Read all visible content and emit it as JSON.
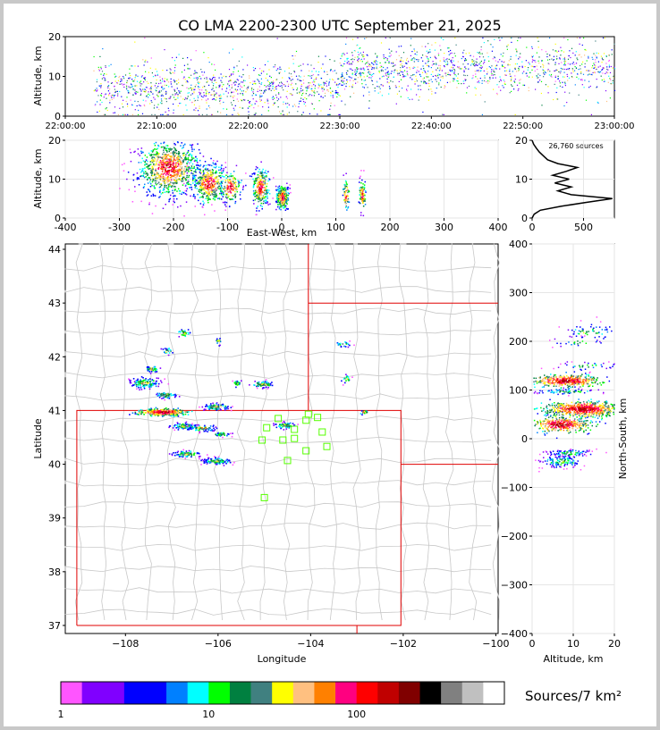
{
  "chart_data": {
    "type": "scatter",
    "title": "CO LMA 2200-2300 UTC September 21, 2025",
    "panels": {
      "time_height": {
        "ylabel": "Altitude, km",
        "ylim": [
          0,
          20
        ],
        "yticks": [
          "0",
          "10",
          "20"
        ],
        "xticks": [
          "22:00:00",
          "22:10:00",
          "22:20:00",
          "22:30:00",
          "22:40:00",
          "22:50:00",
          "23:00:00"
        ],
        "xlim_minutes": [
          0,
          60
        ]
      },
      "ew_height": {
        "ylabel": "Altitude, km",
        "xlabel": "East-West, km",
        "xlim": [
          -400,
          400
        ],
        "ylim": [
          0,
          20
        ],
        "xticks": [
          "-400",
          "-300",
          "-200",
          "-100",
          "0",
          "100",
          "200",
          "300",
          "400"
        ],
        "yticks": [
          "0",
          "10",
          "20"
        ],
        "clusters": [
          {
            "x": -210,
            "alt": 13,
            "sx": 28,
            "sz": 3.5,
            "n": 900
          },
          {
            "x": -135,
            "alt": 9,
            "sx": 15,
            "sz": 2.5,
            "n": 420
          },
          {
            "x": -95,
            "alt": 8,
            "sx": 10,
            "sz": 2,
            "n": 160
          },
          {
            "x": -40,
            "alt": 8,
            "sx": 8,
            "sz": 2.5,
            "n": 260
          },
          {
            "x": 0,
            "alt": 5.5,
            "sx": 6,
            "sz": 1.5,
            "n": 260
          },
          {
            "x": 118,
            "alt": 6,
            "sx": 3,
            "sz": 2,
            "n": 70
          },
          {
            "x": 148,
            "alt": 6,
            "sx": 3,
            "sz": 2,
            "n": 90
          }
        ]
      },
      "histogram": {
        "annotation": "26,760 sources",
        "xlim": [
          0,
          800
        ],
        "ylim": [
          0,
          20
        ],
        "xticks": [
          "0",
          "500"
        ],
        "yticks": [
          "0",
          "10",
          "20"
        ],
        "profile_alt_km": [
          0,
          1,
          2,
          3,
          4,
          5,
          6,
          7,
          8,
          9,
          10,
          11,
          12,
          13,
          14,
          15,
          16,
          17,
          18,
          19,
          20
        ],
        "profile_counts": [
          0,
          20,
          80,
          280,
          520,
          780,
          380,
          250,
          380,
          220,
          360,
          200,
          330,
          440,
          250,
          150,
          110,
          70,
          40,
          15,
          0
        ]
      },
      "plan_view": {
        "xlabel": "Longitude",
        "ylabel": "Latitude",
        "xlim": [
          -109.3,
          -99.95
        ],
        "ylim": [
          36.85,
          44.1
        ],
        "xticks": [
          "−108",
          "−106",
          "−104",
          "−102",
          "−100"
        ],
        "yticks": [
          "37",
          "38",
          "39",
          "40",
          "41",
          "42",
          "43",
          "44"
        ],
        "stations": [
          {
            "lon": -104.7,
            "lat": 40.85
          },
          {
            "lon": -104.05,
            "lat": 40.93
          },
          {
            "lon": -103.85,
            "lat": 40.87
          },
          {
            "lon": -104.1,
            "lat": 40.82
          },
          {
            "lon": -104.95,
            "lat": 40.68
          },
          {
            "lon": -104.35,
            "lat": 40.65
          },
          {
            "lon": -103.75,
            "lat": 40.6
          },
          {
            "lon": -104.6,
            "lat": 40.45
          },
          {
            "lon": -104.35,
            "lat": 40.48
          },
          {
            "lon": -105.05,
            "lat": 40.45
          },
          {
            "lon": -103.65,
            "lat": 40.33
          },
          {
            "lon": -104.1,
            "lat": 40.25
          },
          {
            "lon": -104.5,
            "lat": 40.07
          },
          {
            "lon": -105.0,
            "lat": 39.38
          }
        ],
        "clusters": [
          {
            "lon": -107.2,
            "lat": 40.98,
            "sl": 0.25,
            "sb": 0.03,
            "n": 360
          },
          {
            "lon": -106.05,
            "lat": 41.08,
            "sl": 0.15,
            "sb": 0.03,
            "n": 90
          },
          {
            "lon": -107.6,
            "lat": 41.52,
            "sl": 0.15,
            "sb": 0.05,
            "n": 130
          },
          {
            "lon": -107.45,
            "lat": 41.78,
            "sl": 0.08,
            "sb": 0.03,
            "n": 40
          },
          {
            "lon": -107.15,
            "lat": 41.3,
            "sl": 0.12,
            "sb": 0.03,
            "n": 60
          },
          {
            "lon": -106.75,
            "lat": 40.72,
            "sl": 0.15,
            "sb": 0.03,
            "n": 80
          },
          {
            "lon": -106.35,
            "lat": 40.68,
            "sl": 0.15,
            "sb": 0.03,
            "n": 70
          },
          {
            "lon": -106.7,
            "lat": 40.2,
            "sl": 0.15,
            "sb": 0.03,
            "n": 80
          },
          {
            "lon": -106.05,
            "lat": 40.07,
            "sl": 0.15,
            "sb": 0.03,
            "n": 110
          },
          {
            "lon": -105.95,
            "lat": 40.57,
            "sl": 0.1,
            "sb": 0.02,
            "n": 35
          },
          {
            "lon": -104.55,
            "lat": 40.73,
            "sl": 0.12,
            "sb": 0.03,
            "n": 70
          },
          {
            "lon": -105.05,
            "lat": 41.5,
            "sl": 0.12,
            "sb": 0.03,
            "n": 70
          },
          {
            "lon": -105.6,
            "lat": 41.52,
            "sl": 0.04,
            "sb": 0.03,
            "n": 25
          },
          {
            "lon": -106.75,
            "lat": 42.45,
            "sl": 0.08,
            "sb": 0.04,
            "n": 30
          },
          {
            "lon": -107.1,
            "lat": 42.12,
            "sl": 0.08,
            "sb": 0.03,
            "n": 20
          },
          {
            "lon": -106.0,
            "lat": 42.3,
            "sl": 0.03,
            "sb": 0.04,
            "n": 15
          },
          {
            "lon": -103.3,
            "lat": 42.25,
            "sl": 0.08,
            "sb": 0.03,
            "n": 20
          },
          {
            "lon": -103.25,
            "lat": 41.6,
            "sl": 0.05,
            "sb": 0.04,
            "n": 20
          },
          {
            "lon": -102.85,
            "lat": 40.98,
            "sl": 0.08,
            "sb": 0.02,
            "n": 15
          }
        ]
      },
      "ns_height": {
        "xlabel": "Altitude, km",
        "ylabel": "North-South, km",
        "xlim": [
          0,
          20
        ],
        "ylim": [
          -400,
          400
        ],
        "xticks": [
          "0",
          "10",
          "20"
        ],
        "yticks": [
          "400",
          "300",
          "200",
          "100",
          "0",
          "−100",
          "−200",
          "−300",
          "−400"
        ],
        "clusters": [
          {
            "alt": 12,
            "y": 62,
            "sa": 4.5,
            "sy": 8,
            "n": 650
          },
          {
            "alt": 8,
            "y": 120,
            "sa": 4,
            "sy": 6,
            "n": 420
          },
          {
            "alt": 7,
            "y": 30,
            "sa": 3.5,
            "sy": 8,
            "n": 360
          },
          {
            "alt": 8,
            "y": 98,
            "sa": 5,
            "sy": 3,
            "n": 80
          },
          {
            "alt": 7,
            "y": -45,
            "sa": 3,
            "sy": 7,
            "n": 140
          },
          {
            "alt": 9,
            "y": -28,
            "sa": 3,
            "sy": 4,
            "n": 90
          },
          {
            "alt": 14,
            "y": 220,
            "sa": 3.5,
            "sy": 10,
            "n": 60
          },
          {
            "alt": 13,
            "y": 150,
            "sa": 4,
            "sy": 5,
            "n": 40
          },
          {
            "alt": 11,
            "y": 200,
            "sa": 3,
            "sy": 6,
            "n": 30
          }
        ]
      }
    },
    "colorbar": {
      "label": "Sources/7 km²",
      "ticks": [
        "1",
        "10",
        "100"
      ],
      "colors": [
        "#ff55ff",
        "#8000ff",
        "#8000ff",
        "#0000ff",
        "#0000ff",
        "#0080ff",
        "#00ffff",
        "#00ff00",
        "#008040",
        "#408080",
        "#ffff00",
        "#ffc080",
        "#ff8000",
        "#ff0080",
        "#ff0000",
        "#c00000",
        "#800000",
        "#000000",
        "#808080",
        "#c0c0c0",
        "#ffffff"
      ]
    }
  }
}
